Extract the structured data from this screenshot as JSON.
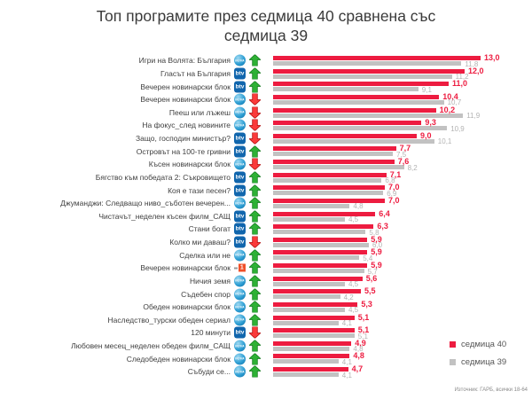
{
  "title": "Топ програмите през седмица 40 сравнена със седмица 39",
  "source_note": "Източник: ГАРБ, всички 18-64",
  "legend": {
    "week40": {
      "label": "седмица 40",
      "color": "#ed1c40"
    },
    "week39": {
      "label": "седмица 39",
      "color": "#c2c2c2"
    }
  },
  "value_text_colors": {
    "week40": "#ed1c40",
    "week39": "#b3b3b3"
  },
  "channel_logos": {
    "nova": "NOVA",
    "btv": "btv",
    "bnt1": "1"
  },
  "trend_colors": {
    "up": {
      "fill": "#2eb135",
      "stroke": "#157a1f"
    },
    "down": {
      "fill": "#fb3a3a",
      "stroke": "#b00d0d"
    }
  },
  "chart_data": {
    "type": "bar",
    "orientation": "horizontal",
    "title": "Топ програмите през седмица 40 сравнена със седмица 39",
    "xlim": [
      0,
      13
    ],
    "grid": false,
    "legend_position": "right-bottom",
    "value_format": "comma-decimal",
    "categories": [
      "Игри на Волята: България",
      "Гласът на България",
      "Вечерен новинарски блок",
      "Вечерен новинарски блок",
      "Пееш или лъжеш",
      "На фокус_след новините",
      "Защо, господин министър?",
      "Островът на 100-те гривни",
      "Късен новинарски блок",
      "Бягство към победата 2: Съкровището",
      "Коя е тази песен?",
      "Джуманджи: Следващо ниво_съботен вечерен...",
      "Чистачът_неделен късен филм_САЩ",
      "Стани богат",
      "Колко ми даваш?",
      "Сделка или не",
      "Вечерен новинарски блок",
      "Ничия земя",
      "Съдебен спор",
      "Обеден новинарски блок",
      "Наследство_турски обеден сериал",
      "120 минути",
      "Любовен месец_неделен обеден филм_САЩ",
      "Следобеден новинарски блок",
      "Събуди се..."
    ],
    "channels": [
      "nova",
      "btv",
      "btv",
      "nova",
      "nova",
      "nova",
      "btv",
      "btv",
      "nova",
      "btv",
      "btv",
      "nova",
      "btv",
      "btv",
      "btv",
      "nova",
      "bnt1",
      "nova",
      "nova",
      "nova",
      "nova",
      "btv",
      "nova",
      "nova",
      "nova"
    ],
    "trends": [
      "up",
      "up",
      "up",
      "down",
      "down",
      "down",
      "down",
      "up",
      "down",
      "up",
      "up",
      "up",
      "up",
      "up",
      "down",
      "up",
      "up",
      "up",
      "up",
      "up",
      "up",
      "down",
      "up",
      "up",
      "up"
    ],
    "series": [
      {
        "name": "седмица 40",
        "color": "#ed1c40",
        "values": [
          13.0,
          12.0,
          11.0,
          10.4,
          10.2,
          9.3,
          9.0,
          7.7,
          7.6,
          7.1,
          7.0,
          7.0,
          6.4,
          6.3,
          5.9,
          5.9,
          5.9,
          5.6,
          5.5,
          5.3,
          5.1,
          5.1,
          4.9,
          4.8,
          4.7
        ]
      },
      {
        "name": "седмица 39",
        "color": "#c2c2c2",
        "values": [
          11.8,
          11.2,
          9.1,
          10.7,
          11.9,
          10.9,
          10.1,
          7.5,
          8.2,
          6.8,
          6.9,
          4.8,
          4.5,
          5.8,
          6.0,
          5.4,
          5.7,
          4.5,
          4.2,
          4.5,
          4.1,
          5.1,
          4.8,
          4.1,
          4.1
        ]
      }
    ]
  }
}
